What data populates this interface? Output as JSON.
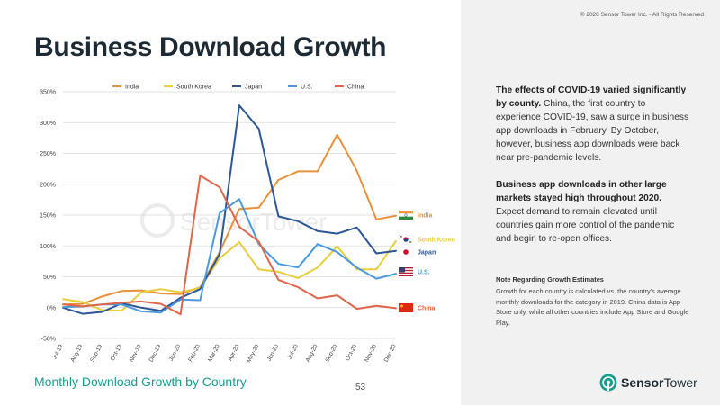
{
  "copyright": "© 2020 Sensor Tower Inc. - All Rights Reserved",
  "title": "Business Download Growth",
  "subtitle": "Monthly Download Growth by Country",
  "page_number": "53",
  "logo": {
    "word1": "Sensor",
    "word2": "Tower"
  },
  "watermark": "SensorTower",
  "paragraphs": [
    {
      "bold": "The effects of COVID-19 varied significantly by county.",
      "text": " China, the first country to experience COVID-19, saw a surge in business app downloads in February. By October, however, business app downloads were back near pre-pandemic levels."
    },
    {
      "bold": "Business app downloads in other large markets stayed high throughout 2020.",
      "text": " Expect demand to remain elevated until countries gain more control of the pandemic and begin to re-open offices."
    }
  ],
  "note": {
    "title": "Note Regarding Growth Estimates",
    "body": "Growth for each country is calculated vs. the country's average monthly downloads for the category in 2019. China data is App Store only, while all other countries include App Store and Google Play."
  },
  "colors": {
    "India": "#e8913a",
    "South Korea": "#e8cd3d",
    "Japan": "#2b5797",
    "U.S.": "#4a9ae0",
    "China": "#e0654a",
    "teal": "#1a9d8f"
  },
  "chart_data": {
    "type": "line",
    "x": [
      "Jul-19",
      "Aug-19",
      "Sep-19",
      "Oct-19",
      "Nov-19",
      "Dec-19",
      "Jan-20",
      "Feb-20",
      "Mar-20",
      "Apr-20",
      "May-20",
      "Jun-20",
      "Jul-20",
      "Aug-20",
      "Sep-20",
      "Oct-20",
      "Nov-20",
      "Dec-20"
    ],
    "ylim": [
      -50,
      350
    ],
    "yticks": [
      -50,
      0,
      50,
      100,
      150,
      200,
      250,
      300,
      350
    ],
    "ytick_labels": [
      "-50%",
      "0%",
      "50%",
      "100%",
      "150%",
      "200%",
      "250%",
      "300%",
      "350%"
    ],
    "legend_position": "top",
    "series": [
      {
        "name": "India",
        "values": [
          5,
          6,
          18,
          27,
          28,
          23,
          22,
          33,
          90,
          160,
          162,
          207,
          221,
          221,
          280,
          222,
          143,
          149
        ]
      },
      {
        "name": "South Korea",
        "values": [
          14,
          9,
          -4,
          -5,
          25,
          30,
          25,
          32,
          80,
          106,
          62,
          58,
          48,
          65,
          99,
          62,
          62,
          108
        ]
      },
      {
        "name": "Japan",
        "values": [
          0,
          -10,
          -7,
          7,
          0,
          -5,
          16,
          30,
          87,
          328,
          290,
          148,
          140,
          124,
          120,
          130,
          88,
          92
        ]
      },
      {
        "name": "U.S.",
        "values": [
          1,
          2,
          5,
          5,
          -6,
          -8,
          13,
          12,
          153,
          176,
          103,
          71,
          65,
          103,
          90,
          65,
          47,
          55
        ]
      },
      {
        "name": "China",
        "values": [
          5,
          2,
          5,
          8,
          10,
          6,
          -11,
          214,
          195,
          131,
          107,
          45,
          33,
          15,
          20,
          -2,
          3,
          -1
        ]
      }
    ],
    "end_labels": [
      {
        "series": "India",
        "label": "India",
        "flag": "flag-india"
      },
      {
        "series": "South Korea",
        "label": "South Korea",
        "flag": "flag-south-korea"
      },
      {
        "series": "Japan",
        "label": "Japan",
        "flag": "flag-japan"
      },
      {
        "series": "U.S.",
        "label": "U.S.",
        "flag": "flag-us"
      },
      {
        "series": "China",
        "label": "China",
        "flag": "flag-china"
      }
    ]
  }
}
